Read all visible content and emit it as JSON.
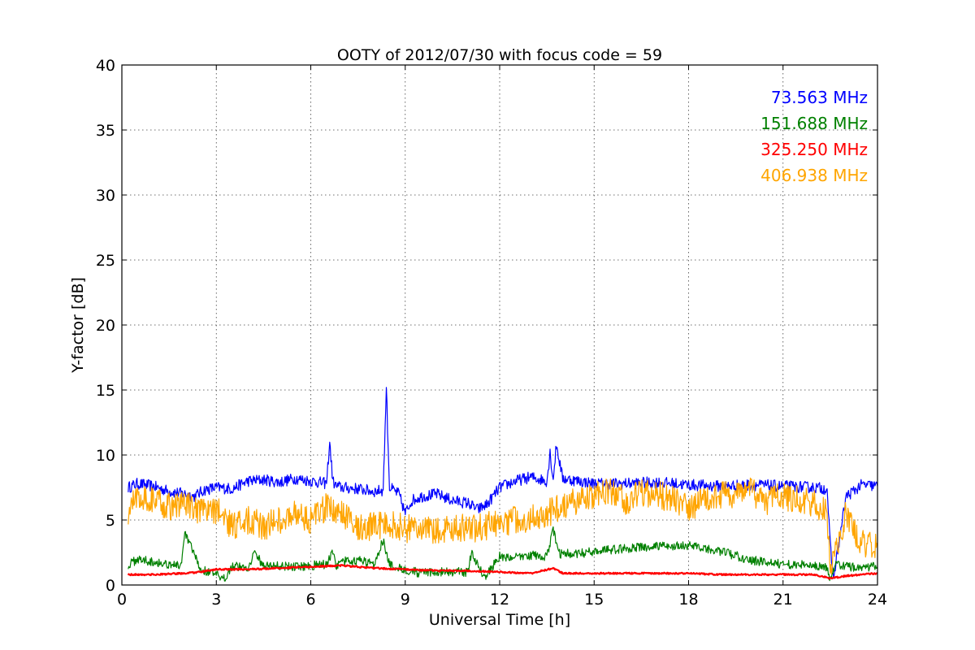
{
  "chart_data": {
    "type": "line",
    "title": "OOTY of 2012/07/30 with focus code = 59",
    "xlabel": "Universal Time [h]",
    "ylabel": "Y-factor [dB]",
    "xlim": [
      0,
      24
    ],
    "ylim": [
      0,
      40
    ],
    "xticks": [
      0,
      3,
      6,
      9,
      12,
      15,
      18,
      21,
      24
    ],
    "yticks": [
      0,
      5,
      10,
      15,
      20,
      25,
      30,
      35,
      40
    ],
    "xtick_labels": [
      "0",
      "3",
      "6",
      "9",
      "12",
      "15",
      "18",
      "21",
      "24"
    ],
    "ytick_labels": [
      "0",
      "5",
      "10",
      "15",
      "20",
      "25",
      "30",
      "35",
      "40"
    ],
    "grid": true,
    "legend_placement": "top-right",
    "series": [
      {
        "name": "73.563 MHz",
        "color": "#0000ff",
        "x": [
          0.2,
          0.5,
          1.0,
          1.5,
          2.0,
          2.3,
          2.6,
          3.0,
          3.5,
          4.0,
          4.5,
          5.0,
          5.5,
          6.0,
          6.5,
          6.6,
          6.7,
          6.8,
          7.0,
          7.5,
          8.0,
          8.3,
          8.4,
          8.5,
          8.8,
          9.0,
          9.2,
          9.5,
          10.0,
          10.5,
          11.0,
          11.3,
          11.6,
          12.0,
          12.5,
          13.0,
          13.5,
          13.6,
          13.7,
          13.8,
          14.0,
          14.5,
          15.0,
          16.0,
          17.0,
          18.0,
          19.0,
          20.0,
          21.0,
          22.0,
          22.4,
          22.5,
          22.6,
          23.0,
          23.5,
          24.0
        ],
        "y": [
          7.5,
          7.8,
          7.6,
          7.2,
          7.0,
          6.8,
          7.3,
          7.5,
          7.4,
          8.0,
          8.1,
          7.9,
          8.2,
          8.0,
          7.8,
          11.0,
          8.0,
          7.6,
          7.5,
          7.4,
          7.2,
          7.3,
          15.2,
          7.5,
          7.0,
          5.5,
          6.5,
          6.8,
          7.0,
          6.5,
          6.3,
          5.8,
          6.2,
          7.5,
          8.0,
          8.3,
          8.0,
          10.2,
          8.1,
          10.8,
          8.2,
          8.0,
          7.8,
          7.8,
          7.9,
          7.7,
          7.6,
          7.7,
          7.6,
          7.5,
          7.4,
          3.0,
          0.5,
          6.8,
          7.7,
          7.6
        ]
      },
      {
        "name": "151.688 MHz",
        "color": "#008000",
        "x": [
          0.2,
          0.5,
          1.0,
          1.5,
          1.9,
          2.0,
          2.5,
          3.0,
          3.2,
          3.5,
          4.0,
          4.2,
          4.5,
          5.0,
          5.5,
          6.0,
          6.5,
          6.7,
          6.8,
          7.0,
          7.5,
          8.0,
          8.3,
          8.5,
          9.0,
          9.5,
          10.0,
          10.5,
          11.0,
          11.1,
          11.5,
          11.6,
          12.0,
          12.5,
          13.0,
          13.5,
          13.7,
          13.9,
          14.5,
          15.0,
          16.0,
          17.0,
          18.0,
          19.0,
          20.0,
          21.0,
          22.0,
          22.4,
          22.5,
          22.7,
          23.0,
          24.0
        ],
        "y": [
          1.5,
          2.0,
          1.8,
          1.6,
          1.5,
          4.0,
          1.2,
          0.8,
          0.3,
          1.5,
          1.3,
          2.5,
          1.5,
          1.5,
          1.4,
          1.5,
          1.6,
          2.5,
          1.4,
          1.8,
          1.9,
          1.6,
          3.5,
          1.5,
          1.2,
          0.9,
          1.0,
          1.0,
          1.0,
          2.5,
          0.7,
          0.8,
          2.2,
          2.1,
          2.3,
          2.2,
          4.2,
          2.4,
          2.4,
          2.6,
          2.8,
          3.0,
          3.0,
          2.6,
          1.9,
          1.6,
          1.5,
          1.3,
          0.4,
          1.6,
          1.4,
          1.4
        ]
      },
      {
        "name": "325.250 MHz",
        "color": "#ff0000",
        "x": [
          0.2,
          1.0,
          2.0,
          2.5,
          3.0,
          4.0,
          5.0,
          6.0,
          7.0,
          7.5,
          8.0,
          9.0,
          10.0,
          11.0,
          12.0,
          13.0,
          13.7,
          14.0,
          15.0,
          16.0,
          17.0,
          18.0,
          19.0,
          20.0,
          21.0,
          22.0,
          22.5,
          23.0,
          24.0
        ],
        "y": [
          0.8,
          0.8,
          0.9,
          1.0,
          1.2,
          1.2,
          1.3,
          1.4,
          1.5,
          1.4,
          1.3,
          1.2,
          1.1,
          1.1,
          1.0,
          0.9,
          1.3,
          0.9,
          0.9,
          0.9,
          0.9,
          0.9,
          0.8,
          0.8,
          0.8,
          0.8,
          0.5,
          0.7,
          0.9
        ]
      },
      {
        "name": "406.938 MHz",
        "color": "#ffa500",
        "x": [
          0.2,
          0.5,
          1.0,
          1.5,
          2.0,
          2.5,
          3.0,
          3.5,
          4.0,
          4.5,
          5.0,
          5.5,
          6.0,
          6.5,
          7.0,
          7.5,
          8.0,
          8.5,
          9.0,
          9.5,
          10.0,
          10.5,
          11.0,
          11.5,
          12.0,
          12.5,
          13.0,
          13.5,
          14.0,
          14.5,
          15.0,
          15.5,
          16.0,
          16.5,
          17.0,
          17.5,
          18.0,
          18.5,
          19.0,
          19.5,
          20.0,
          20.5,
          21.0,
          21.5,
          22.0,
          22.4,
          22.5,
          22.8,
          23.0,
          23.3,
          23.6,
          24.0
        ],
        "y": [
          5.5,
          7.0,
          6.5,
          6.0,
          6.3,
          5.5,
          5.8,
          4.5,
          5.0,
          4.5,
          5.0,
          5.5,
          5.0,
          6.0,
          5.5,
          4.5,
          4.5,
          4.8,
          4.3,
          4.5,
          4.0,
          4.5,
          4.3,
          4.5,
          4.8,
          5.0,
          5.2,
          5.5,
          6.0,
          6.5,
          7.0,
          7.2,
          6.5,
          7.0,
          7.0,
          6.5,
          6.0,
          6.5,
          7.0,
          6.8,
          7.2,
          6.5,
          6.8,
          6.5,
          6.2,
          5.5,
          1.0,
          3.5,
          5.5,
          4.0,
          3.0,
          3.2
        ]
      }
    ]
  }
}
